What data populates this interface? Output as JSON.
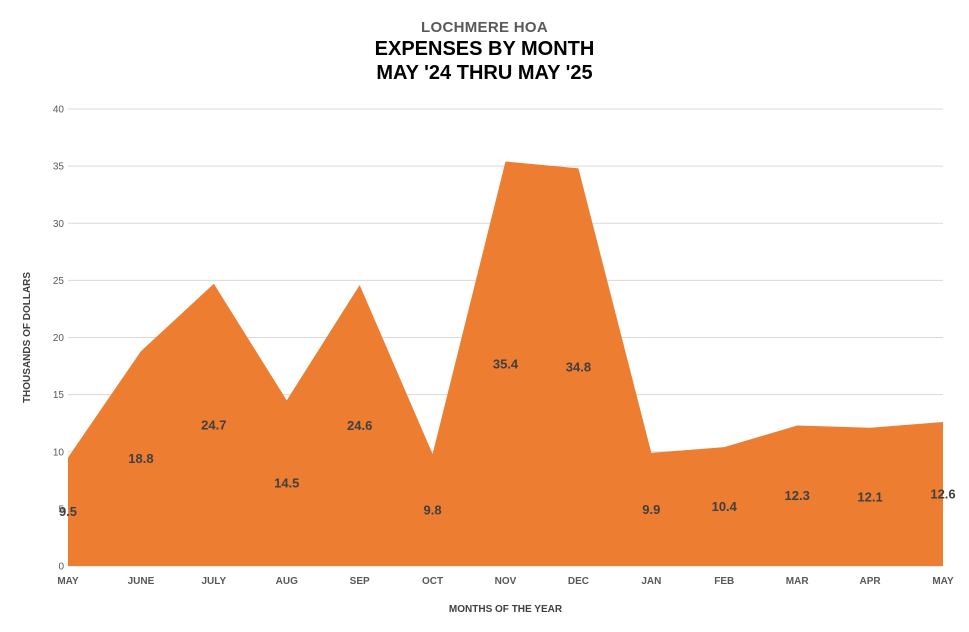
{
  "chart_data": {
    "type": "area",
    "supertitle": "LOCHMERE HOA",
    "title": "EXPENSES BY MONTH",
    "subtitle": "MAY '24 THRU MAY '25",
    "xlabel": "MONTHS OF THE YEAR",
    "ylabel": "THOUSANDS OF DOLLARS",
    "categories": [
      "MAY",
      "JUNE",
      "JULY",
      "AUG",
      "SEP",
      "OCT",
      "NOV",
      "DEC",
      "JAN",
      "FEB",
      "MAR",
      "APR",
      "MAY"
    ],
    "series": [
      {
        "values": [
          9.5,
          18.8,
          24.7,
          14.5,
          24.6,
          9.8,
          35.4,
          34.8,
          9.9,
          10.4,
          12.3,
          12.1,
          12.6
        ],
        "color": "#ED7D31",
        "labels": [
          "9.5",
          "18.8",
          "24.7",
          "14.5",
          "24.6",
          "9.8",
          "35.4",
          "34.8",
          "9.9",
          "10.4",
          "12.3",
          "12.1",
          "12.6"
        ]
      }
    ],
    "ylim": [
      0,
      40
    ],
    "yticks": [
      "0",
      "5",
      "10",
      "15",
      "20",
      "25",
      "30",
      "35",
      "40"
    ],
    "grid": true,
    "legend": "none",
    "gridColor": "#D9D9D9"
  }
}
